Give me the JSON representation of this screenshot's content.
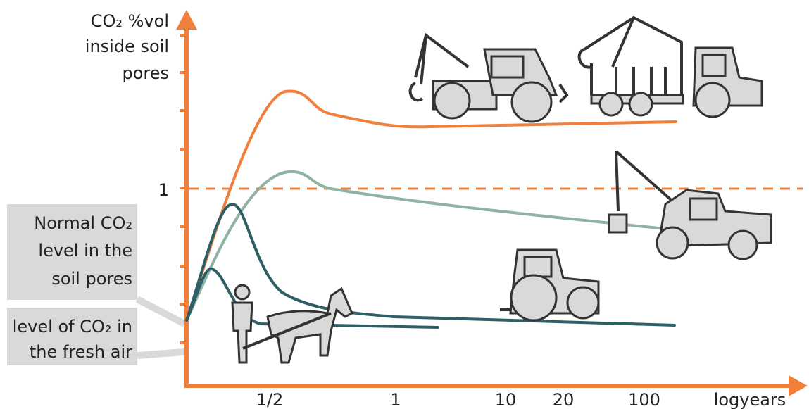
{
  "y_axis_label": [
    "CO₂ %vol",
    "inside soil",
    "pores"
  ],
  "y_tick": "1",
  "x_labels": [
    "1/2",
    "1",
    "10",
    "20",
    "100"
  ],
  "x_axis_unit": "logyears",
  "callouts": [
    {
      "lines": [
        "Normal CO₂",
        "level in the",
        "soil pores"
      ]
    },
    {
      "lines": [
        "level of CO₂ in",
        "the fresh air"
      ]
    }
  ]
}
